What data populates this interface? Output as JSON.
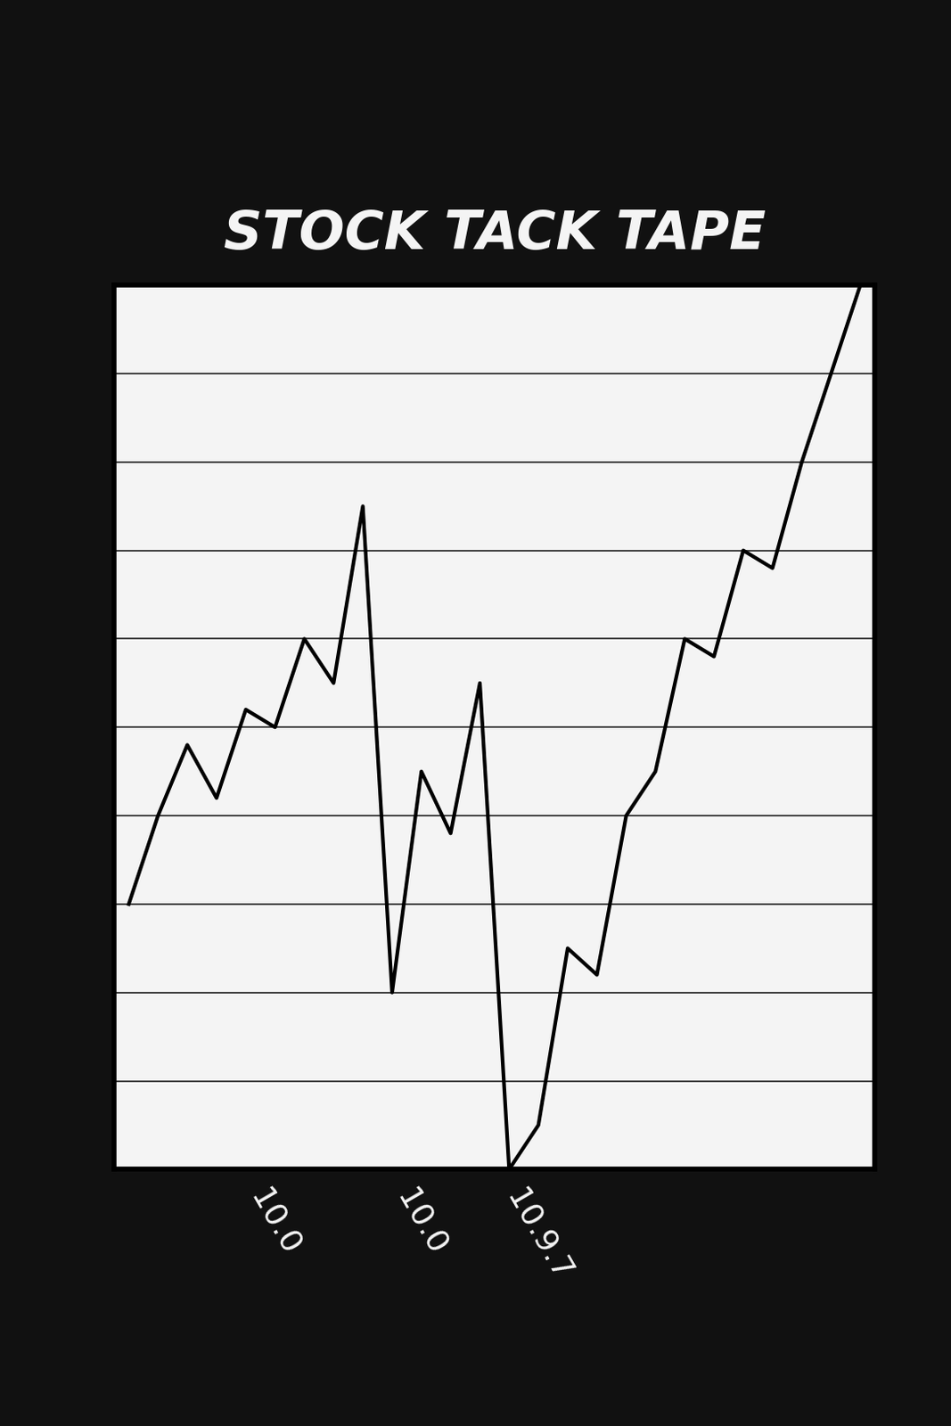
{
  "chart_data": {
    "type": "line",
    "title": "STOCK TACK TAPE",
    "categories": [
      null,
      null,
      null,
      null,
      null,
      "10.0",
      null,
      null,
      null,
      null,
      "10.0",
      null,
      null,
      null,
      "10.9.7",
      null,
      null,
      null,
      null,
      null,
      null,
      null,
      null,
      null,
      null,
      null
    ],
    "values": [
      30,
      40,
      48,
      42,
      52,
      50,
      60,
      55,
      75,
      20,
      45,
      38,
      55,
      0,
      5,
      25,
      22,
      40,
      45,
      60,
      58,
      70,
      68,
      80,
      90,
      100
    ],
    "color": "#000000",
    "ylim": [
      0,
      100
    ],
    "yticks": [
      0,
      10,
      20,
      30,
      40,
      50,
      60,
      70,
      80,
      90,
      100
    ],
    "grid": true,
    "tick_labels": "x",
    "marker": "none",
    "line_style": "solid"
  }
}
